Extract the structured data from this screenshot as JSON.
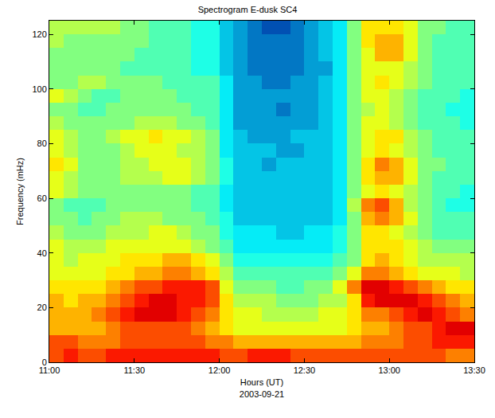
{
  "chart_data": {
    "type": "heatmap",
    "title": "Spectrogram E-dusk SC4",
    "xlabel": "Hours (UT)",
    "ylabel": "Frequency (mHz)",
    "annotations": [
      {
        "text": "2003-09-21"
      }
    ],
    "color": "jet",
    "zlim": [
      0,
      10
    ],
    "xlim": [
      660,
      810
    ],
    "xticks": [
      {
        "value": 660,
        "label": "11:00"
      },
      {
        "value": 690,
        "label": "11:30"
      },
      {
        "value": 720,
        "label": "12:00"
      },
      {
        "value": 750,
        "label": "12:30"
      },
      {
        "value": 780,
        "label": "13:00"
      },
      {
        "value": 810,
        "label": "13:30"
      }
    ],
    "ylim": [
      0,
      125
    ],
    "yticks": [
      0,
      20,
      40,
      60,
      80,
      100,
      120
    ],
    "grid": false,
    "x": [
      662.5,
      667.5,
      672.5,
      677.5,
      682.5,
      687.5,
      692.5,
      697.5,
      702.5,
      707.5,
      712.5,
      717.5,
      722.5,
      727.5,
      732.5,
      737.5,
      742.5,
      747.5,
      752.5,
      757.5,
      762.5,
      767.5,
      772.5,
      777.5,
      782.5,
      787.5,
      792.5,
      797.5,
      802.5,
      807.5
    ],
    "y": [
      2.5,
      7.5,
      12.5,
      17.5,
      22.5,
      27.5,
      32.5,
      37.5,
      42.5,
      47.5,
      52.5,
      57.5,
      62.5,
      67.5,
      72.5,
      77.5,
      82.5,
      87.5,
      92.5,
      97.5,
      102.5,
      107.5,
      112.5,
      117.5,
      122.5
    ],
    "cells": [
      [
        8,
        8.5,
        8,
        8,
        8.5,
        8.5,
        8.5,
        8.5,
        8.5,
        8.5,
        8.5,
        8.5,
        8,
        8,
        8.5,
        8.5,
        8.5,
        8,
        8,
        8,
        8,
        8,
        8,
        8,
        8,
        8,
        8,
        8,
        7.5,
        7.5
      ],
      [
        8,
        8,
        7.5,
        7.5,
        7.5,
        8,
        8,
        8,
        8,
        8,
        8,
        7.5,
        7.5,
        7,
        7,
        7,
        7,
        7,
        7,
        7,
        7,
        7,
        7.5,
        7.5,
        7.5,
        8,
        8,
        8.5,
        8.5,
        8.5
      ],
      [
        7,
        7,
        7,
        7,
        7.5,
        8,
        8,
        8,
        8,
        8,
        7.5,
        7,
        6.5,
        6,
        6,
        6,
        6,
        6,
        6,
        6,
        6,
        6.5,
        7,
        7,
        7.5,
        8,
        8,
        8.5,
        9,
        9
      ],
      [
        7,
        7,
        7,
        7.5,
        8,
        8.5,
        9,
        9,
        9,
        8.5,
        8,
        7.5,
        6.5,
        6,
        6,
        5.5,
        5.5,
        5.5,
        5.5,
        6,
        6,
        6.5,
        7.5,
        7.5,
        8,
        8.5,
        9,
        8.5,
        8,
        7.5
      ],
      [
        7,
        6.5,
        7,
        7,
        7.5,
        8,
        8.5,
        9,
        9,
        8.5,
        8.5,
        8,
        6.5,
        5.5,
        5.5,
        5.5,
        5,
        5,
        5,
        5.5,
        5.5,
        6.5,
        8.5,
        9,
        9,
        9,
        8.5,
        8,
        7.5,
        7
      ],
      [
        6.5,
        6.5,
        6.5,
        6.5,
        7,
        7.5,
        8,
        8,
        8.5,
        8.5,
        8.5,
        8,
        6,
        5,
        5,
        5,
        4.5,
        4.5,
        5,
        5,
        6,
        7.5,
        9,
        9,
        8.5,
        8,
        7.5,
        7,
        6.5,
        6.5
      ],
      [
        6,
        6,
        6,
        6,
        6.5,
        6.5,
        7,
        7,
        7.5,
        7.5,
        7,
        6.5,
        5.5,
        4.5,
        4.5,
        4.5,
        4.5,
        4.5,
        4.5,
        4.5,
        5,
        6,
        7.5,
        7.5,
        7,
        6.5,
        6,
        6,
        6,
        5.5
      ],
      [
        6,
        5.5,
        6,
        6,
        6,
        6.5,
        6.5,
        6.5,
        7,
        7,
        6.5,
        6,
        5,
        4,
        4,
        4,
        4,
        4,
        4,
        4,
        4.5,
        5,
        6.5,
        7,
        6.5,
        6,
        5.5,
        5.5,
        5.5,
        5.5
      ],
      [
        6,
        5.5,
        5.5,
        5.5,
        6,
        6,
        6,
        6,
        6,
        6,
        5.5,
        5,
        4.5,
        3.5,
        3.5,
        3.5,
        3.5,
        3.5,
        3.5,
        3.5,
        4,
        5,
        6.5,
        6.5,
        6.5,
        6,
        5.5,
        5,
        5,
        5
      ],
      [
        5.5,
        5,
        5,
        5,
        5.5,
        5.5,
        5.5,
        6,
        6,
        5.5,
        5,
        5,
        4,
        3.5,
        3.5,
        3.5,
        3,
        3,
        3.5,
        3.5,
        4,
        5,
        6.5,
        6.5,
        6,
        5.5,
        5,
        4.5,
        4.5,
        4.5
      ],
      [
        5,
        5,
        4.5,
        5,
        5,
        5.5,
        5.5,
        5.5,
        5,
        5,
        5,
        4.5,
        4,
        3,
        3,
        3,
        3,
        3,
        3,
        3,
        3.5,
        5,
        7,
        7.5,
        7,
        6,
        5,
        4.5,
        4.5,
        4.5
      ],
      [
        5,
        4.5,
        4.5,
        4.5,
        5,
        5,
        5,
        5,
        5,
        5,
        4.5,
        4.5,
        3.5,
        3,
        3,
        3,
        3,
        3,
        3,
        3,
        3.5,
        5.5,
        7.5,
        8,
        7,
        5.5,
        5,
        4.5,
        4,
        4
      ],
      [
        6,
        5.5,
        5,
        5,
        5,
        5,
        5,
        5,
        5,
        5,
        4.5,
        4.5,
        3.5,
        3,
        3,
        3,
        3,
        3,
        3,
        3,
        3.5,
        5,
        6,
        6.5,
        6,
        5.5,
        5,
        4.5,
        4.5,
        4
      ],
      [
        6,
        5.5,
        5,
        5,
        5,
        5.5,
        5.5,
        5.5,
        6,
        6,
        5.5,
        5,
        4,
        3,
        3,
        3,
        3,
        3,
        3,
        3,
        3.5,
        5,
        6.5,
        7,
        7,
        6,
        5,
        4.5,
        4.5,
        4.5
      ],
      [
        6.5,
        6,
        5,
        5,
        5,
        5.5,
        5.5,
        6,
        6,
        6,
        5.5,
        5,
        4,
        3,
        3,
        2.5,
        3,
        3,
        3,
        3,
        3.5,
        5,
        6.5,
        7.5,
        7,
        6,
        5,
        5,
        4.5,
        4.5
      ],
      [
        6,
        5.5,
        5,
        5,
        5,
        5.5,
        6,
        6,
        6,
        5.5,
        5.5,
        5,
        3.5,
        3,
        3,
        3,
        2.5,
        2.5,
        3,
        3,
        3.5,
        5,
        6,
        6.5,
        6,
        5.5,
        5,
        4.5,
        4.5,
        4.5
      ],
      [
        6,
        5.5,
        5,
        5,
        5.5,
        6,
        6,
        6.5,
        6,
        6,
        5.5,
        5,
        3.5,
        3,
        2.5,
        2.5,
        2.5,
        3,
        3,
        3,
        3.5,
        5,
        6,
        6.5,
        6.5,
        5.5,
        5,
        4.5,
        4.5,
        4.5
      ],
      [
        5.5,
        5,
        5,
        5,
        5,
        5,
        5.5,
        5.5,
        5.5,
        5,
        5,
        4.5,
        3.5,
        2.5,
        2.5,
        2.5,
        2.5,
        2.5,
        2.5,
        3,
        3.5,
        5,
        6,
        6,
        5.5,
        5,
        4.5,
        4.5,
        4.5,
        4
      ],
      [
        5,
        5,
        4.5,
        4.5,
        5,
        5,
        5,
        5,
        5,
        5,
        4.5,
        4.5,
        3.5,
        2.5,
        2.5,
        2.5,
        2,
        2.5,
        2.5,
        3,
        3.5,
        5,
        5.5,
        6,
        5.5,
        5,
        4.5,
        4.5,
        4,
        4
      ],
      [
        6,
        5.5,
        5,
        4.5,
        4.5,
        5,
        5,
        5,
        5,
        4.5,
        4.5,
        4.5,
        3.5,
        2.5,
        2.5,
        2.5,
        2.5,
        2.5,
        2.5,
        3,
        3.5,
        5,
        6,
        6,
        5.5,
        5,
        4.5,
        4.5,
        4.5,
        4
      ],
      [
        5,
        5,
        5.5,
        5.5,
        5,
        5,
        5,
        5,
        4.5,
        4.5,
        4.5,
        4.5,
        3.5,
        2.5,
        2.5,
        2,
        2,
        2.5,
        2.5,
        3,
        3.5,
        5,
        6,
        6.5,
        6,
        5.5,
        5,
        4.5,
        4.5,
        4.5
      ],
      [
        5,
        5,
        5,
        5,
        5,
        4.5,
        4.5,
        4.5,
        4.5,
        4.5,
        4,
        4,
        3,
        2.5,
        2,
        2,
        2,
        2,
        2.5,
        2.5,
        3.5,
        5,
        6,
        6,
        6,
        5.5,
        5,
        4.5,
        4.5,
        4.5
      ],
      [
        5,
        5,
        5,
        5,
        5,
        5,
        4.5,
        4.5,
        4.5,
        4.5,
        4,
        4,
        3,
        2.5,
        2,
        2,
        2,
        2,
        2.5,
        3,
        3.5,
        5,
        6,
        7,
        7,
        6,
        5,
        4.5,
        4.5,
        4.5
      ],
      [
        5.5,
        5,
        5,
        5,
        5,
        5,
        5,
        4.5,
        4.5,
        4.5,
        4,
        4,
        3,
        2.5,
        2,
        2,
        2,
        2,
        2.5,
        3,
        3.5,
        5,
        6.5,
        7,
        7,
        6,
        5,
        4.5,
        4.5,
        4.5
      ],
      [
        5.5,
        5.5,
        5.5,
        5.5,
        5.5,
        5,
        5,
        4.5,
        4.5,
        4.5,
        4,
        4,
        3,
        2.5,
        2,
        1.5,
        1.5,
        2,
        2.5,
        3,
        3.5,
        5,
        6.5,
        6.5,
        6.5,
        6,
        5,
        5,
        4.5,
        4.5
      ]
    ]
  }
}
